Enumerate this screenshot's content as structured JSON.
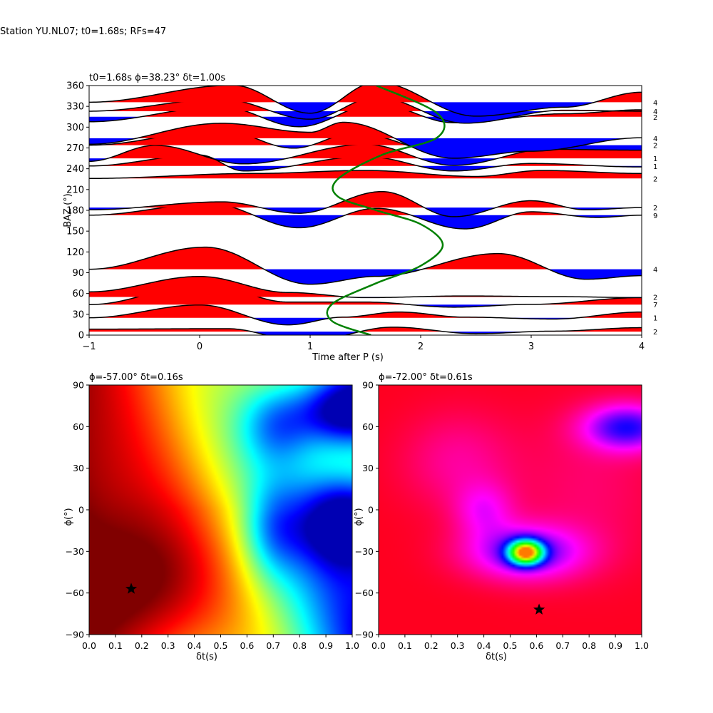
{
  "figure_title": "Station YU.NL07; t0=1.68s; RFs=47",
  "chart_data": [
    {
      "type": "line",
      "title": "t0=1.68s ϕ=38.23° δt=1.00s",
      "xlabel": "Time after P (s)",
      "ylabel": "BAZ (°)",
      "xlim": [
        -1,
        4
      ],
      "ylim": [
        0,
        360
      ],
      "xticks": [
        "−1",
        "0",
        "1",
        "2",
        "3",
        "4"
      ],
      "yticks": [
        "0",
        "30",
        "60",
        "90",
        "120",
        "150",
        "180",
        "210",
        "240",
        "270",
        "300",
        "330",
        "360"
      ],
      "grid": false,
      "colors": {
        "positive": "#ff0000",
        "negative": "#0000ff",
        "trace": "#000000",
        "curve": "#008000"
      },
      "traces": [
        {
          "baz": 5,
          "count": "2",
          "amp": 14,
          "w": [
            [
              -1,
              0.25
            ],
            [
              0.25,
              0.3
            ],
            [
              0.95,
              -1
            ],
            [
              1.75,
              0.45
            ],
            [
              2.5,
              -0.2
            ],
            [
              3.2,
              0.05
            ],
            [
              4,
              0.4
            ]
          ]
        },
        {
          "baz": 25,
          "count": "1",
          "amp": 18,
          "w": [
            [
              -1,
              0
            ],
            [
              0,
              1
            ],
            [
              0.8,
              -0.55
            ],
            [
              1.3,
              0.05
            ],
            [
              1.8,
              0.45
            ],
            [
              2.4,
              0.05
            ],
            [
              3.2,
              -0.1
            ],
            [
              4,
              0.45
            ]
          ]
        },
        {
          "baz": 44,
          "count": "7",
          "amp": 18,
          "w": [
            [
              -1,
              0
            ],
            [
              0.05,
              1.6
            ],
            [
              0.8,
              0.2
            ],
            [
              1.5,
              0.2
            ],
            [
              2.3,
              -0.2
            ],
            [
              3,
              0.02
            ],
            [
              4,
              0.55
            ]
          ]
        },
        {
          "baz": 55,
          "count": "2",
          "amp": 18,
          "w": [
            [
              -1,
              0.4
            ],
            [
              0,
              1.6
            ],
            [
              0.8,
              0.35
            ],
            [
              1.5,
              -0.05
            ],
            [
              2.4,
              0.08
            ],
            [
              3.2,
              0.03
            ],
            [
              4,
              -0.05
            ]
          ]
        },
        {
          "baz": 95,
          "count": "4",
          "amp": 20,
          "w": [
            [
              -1,
              0
            ],
            [
              0.05,
              1.55
            ],
            [
              1,
              -1.05
            ],
            [
              1.6,
              -0.5
            ],
            [
              2.7,
              1.1
            ],
            [
              3.5,
              -0.7
            ],
            [
              4,
              -0.45
            ]
          ]
        },
        {
          "baz": 173,
          "count": "9",
          "amp": 16,
          "w": [
            [
              -1,
              0
            ],
            [
              0.1,
              1
            ],
            [
              0.9,
              -1.1
            ],
            [
              1.6,
              0.6
            ],
            [
              2.4,
              -1.2
            ],
            [
              3,
              0.3
            ],
            [
              3.6,
              -0.2
            ],
            [
              4,
              0
            ]
          ]
        },
        {
          "baz": 184,
          "count": "2",
          "amp": 16,
          "w": [
            [
              -1,
              -0.2
            ],
            [
              0.2,
              0.5
            ],
            [
              0.9,
              -0.5
            ],
            [
              1.65,
              1.4
            ],
            [
              2.3,
              -0.8
            ],
            [
              3,
              0.6
            ],
            [
              3.5,
              -0.2
            ],
            [
              4,
              0
            ]
          ]
        },
        {
          "baz": 226,
          "count": "2",
          "amp": 14,
          "w": [
            [
              -1,
              0
            ],
            [
              0.5,
              0.5
            ],
            [
              1.5,
              0.8
            ],
            [
              2.5,
              0.2
            ],
            [
              3.1,
              0.8
            ],
            [
              4,
              0.5
            ]
          ]
        },
        {
          "baz": 244,
          "count": "1",
          "amp": 14,
          "w": [
            [
              -1,
              0
            ],
            [
              0,
              1.1
            ],
            [
              0.4,
              -0.5
            ],
            [
              1.5,
              0.95
            ],
            [
              2.3,
              -0.5
            ],
            [
              3,
              0.25
            ],
            [
              4,
              -0.1
            ]
          ]
        },
        {
          "baz": 255,
          "count": "1",
          "amp": 14,
          "w": [
            [
              -1,
              -0.3
            ],
            [
              -0.4,
              1.3
            ],
            [
              0.4,
              -0.55
            ],
            [
              1.5,
              1.4
            ],
            [
              2.3,
              -0.7
            ],
            [
              3.2,
              1
            ],
            [
              4,
              0.85
            ]
          ]
        },
        {
          "baz": 274,
          "count": "2",
          "amp": 14,
          "w": [
            [
              -1,
              0
            ],
            [
              0.2,
              1.5
            ],
            [
              0.85,
              -0.3
            ],
            [
              1.4,
              1.2
            ],
            [
              2.3,
              -1
            ],
            [
              3,
              -0.4
            ],
            [
              4,
              -0.5
            ]
          ]
        },
        {
          "baz": 284,
          "count": "4",
          "amp": 14,
          "w": [
            [
              -1,
              -0.6
            ],
            [
              0.2,
              1.5
            ],
            [
              1,
              0.6
            ],
            [
              1.3,
              1.6
            ],
            [
              2.3,
              -2
            ],
            [
              3,
              -1.3
            ],
            [
              4,
              0.05
            ]
          ]
        },
        {
          "baz": 315,
          "count": "2",
          "amp": 14,
          "w": [
            [
              -1,
              -0.5
            ],
            [
              0.2,
              1
            ],
            [
              0.9,
              -1
            ],
            [
              1.6,
              1.3
            ],
            [
              2.3,
              -0.6
            ],
            [
              3.3,
              0.3
            ],
            [
              4,
              0.7
            ]
          ]
        },
        {
          "baz": 323,
          "count": "4",
          "amp": 14,
          "w": [
            [
              -1,
              0
            ],
            [
              0.2,
              1.2
            ],
            [
              1,
              -0.8
            ],
            [
              1.6,
              1.4
            ],
            [
              2.4,
              -1.2
            ],
            [
              3.3,
              0.1
            ],
            [
              4,
              0
            ]
          ]
        },
        {
          "baz": 336,
          "count": "4",
          "amp": 14,
          "w": [
            [
              -1,
              0
            ],
            [
              0.3,
              1.7
            ],
            [
              1,
              -1.1
            ],
            [
              1.6,
              2
            ],
            [
              2.5,
              -1.4
            ],
            [
              3.3,
              -0.5
            ],
            [
              4,
              1
            ]
          ]
        }
      ],
      "green_curve": [
        [
          1.55,
          0
        ],
        [
          1.2,
          20
        ],
        [
          1.2,
          45
        ],
        [
          1.6,
          75
        ],
        [
          2,
          100
        ],
        [
          2.2,
          130
        ],
        [
          2,
          160
        ],
        [
          1.6,
          180
        ],
        [
          1.25,
          200
        ],
        [
          1.25,
          225
        ],
        [
          1.65,
          260
        ],
        [
          2.15,
          285
        ],
        [
          2.15,
          320
        ],
        [
          1.6,
          360
        ]
      ]
    },
    {
      "type": "heatmap",
      "title": "ϕ=-57.00° δt=0.16s",
      "xlabel": "δt(s)",
      "ylabel": "ϕ(°)",
      "xlim": [
        0,
        1
      ],
      "ylim": [
        -90,
        90
      ],
      "xticks": [
        "0.0",
        "0.1",
        "0.2",
        "0.3",
        "0.4",
        "0.5",
        "0.6",
        "0.7",
        "0.8",
        "0.9",
        "1.0"
      ],
      "yticks": [
        "−90",
        "−60",
        "−30",
        "0",
        "30",
        "60",
        "90"
      ],
      "colormap": "jet",
      "best": {
        "dt": 0.16,
        "phi": -57
      }
    },
    {
      "type": "heatmap",
      "title": "ϕ=-72.00° δt=0.61s",
      "xlabel": "δt(s)",
      "ylabel": "ϕ(°)",
      "xlim": [
        0,
        1
      ],
      "ylim": [
        -90,
        90
      ],
      "xticks": [
        "0.0",
        "0.1",
        "0.2",
        "0.3",
        "0.4",
        "0.5",
        "0.6",
        "0.7",
        "0.8",
        "0.9",
        "1.0"
      ],
      "yticks": [
        "−90",
        "−60",
        "−30",
        "0",
        "30",
        "60",
        "90"
      ],
      "colormap": "hsv",
      "best": {
        "dt": 0.61,
        "phi": -72
      }
    }
  ]
}
